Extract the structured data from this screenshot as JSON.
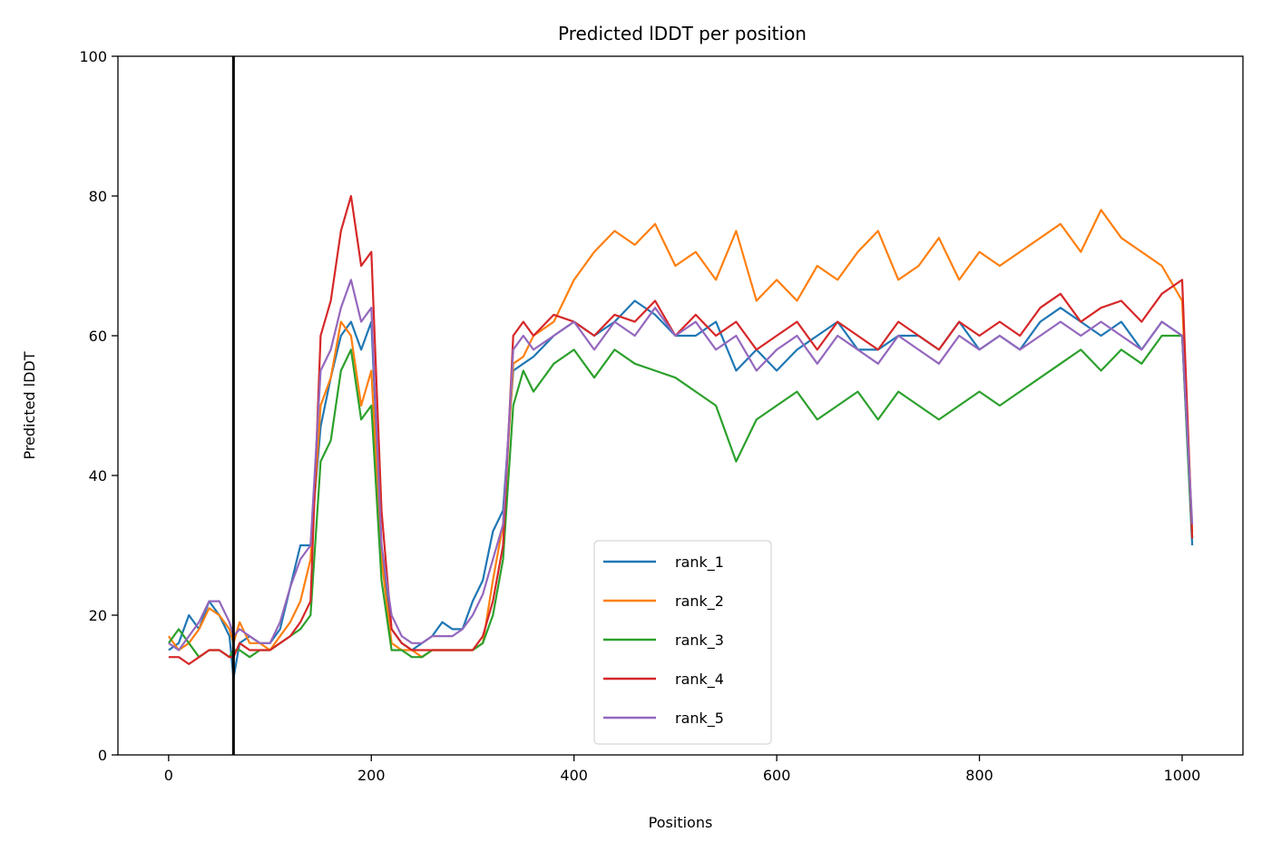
{
  "chart_data": {
    "type": "line",
    "title": "Predicted lDDT per position",
    "xlabel": "Positions",
    "ylabel": "Predicted lDDT",
    "xlim": [
      -50,
      1060
    ],
    "ylim": [
      0,
      100
    ],
    "xticks": [
      0,
      200,
      400,
      600,
      800,
      1000
    ],
    "yticks": [
      0,
      20,
      40,
      60,
      80,
      100
    ],
    "grid": false,
    "legend_position": "lower-center",
    "vline_x": 64,
    "series": [
      {
        "name": "rank_1",
        "color": "#1f77b4",
        "x": [
          0,
          10,
          20,
          30,
          40,
          50,
          60,
          64,
          70,
          80,
          90,
          100,
          110,
          120,
          130,
          140,
          150,
          160,
          170,
          180,
          190,
          200,
          210,
          220,
          230,
          240,
          250,
          260,
          270,
          280,
          290,
          300,
          310,
          320,
          330,
          340,
          350,
          360,
          380,
          400,
          420,
          440,
          460,
          480,
          500,
          520,
          540,
          560,
          580,
          600,
          620,
          640,
          660,
          680,
          700,
          720,
          740,
          760,
          780,
          800,
          820,
          840,
          860,
          880,
          900,
          920,
          940,
          960,
          980,
          1000,
          1010
        ],
        "y": [
          15,
          16,
          20,
          18,
          22,
          20,
          17,
          11,
          16,
          17,
          16,
          16,
          18,
          24,
          30,
          30,
          47,
          54,
          60,
          62,
          58,
          62,
          30,
          18,
          16,
          15,
          16,
          17,
          19,
          18,
          18,
          22,
          25,
          32,
          35,
          55,
          56,
          57,
          60,
          62,
          60,
          62,
          65,
          63,
          60,
          60,
          62,
          55,
          58,
          55,
          58,
          60,
          62,
          58,
          58,
          60,
          60,
          58,
          62,
          58,
          60,
          58,
          62,
          64,
          62,
          60,
          62,
          58,
          62,
          60,
          30
        ]
      },
      {
        "name": "rank_2",
        "color": "#ff7f0e",
        "x": [
          0,
          10,
          20,
          30,
          40,
          50,
          60,
          64,
          70,
          80,
          90,
          100,
          110,
          120,
          130,
          140,
          150,
          160,
          170,
          180,
          190,
          200,
          210,
          220,
          230,
          240,
          250,
          260,
          270,
          280,
          290,
          300,
          310,
          320,
          330,
          340,
          350,
          360,
          380,
          400,
          420,
          440,
          460,
          480,
          500,
          520,
          540,
          560,
          580,
          600,
          620,
          640,
          660,
          680,
          700,
          720,
          740,
          760,
          780,
          800,
          820,
          840,
          860,
          880,
          900,
          920,
          940,
          960,
          980,
          1000,
          1010
        ],
        "y": [
          17,
          15,
          16,
          18,
          21,
          20,
          18,
          16,
          19,
          16,
          16,
          15,
          17,
          19,
          22,
          28,
          50,
          54,
          62,
          60,
          50,
          55,
          28,
          16,
          15,
          15,
          14,
          15,
          15,
          15,
          15,
          15,
          16,
          25,
          33,
          56,
          57,
          60,
          62,
          68,
          72,
          75,
          73,
          76,
          70,
          72,
          68,
          75,
          65,
          68,
          65,
          70,
          68,
          72,
          75,
          68,
          70,
          74,
          68,
          72,
          70,
          72,
          74,
          76,
          72,
          78,
          74,
          72,
          70,
          65,
          32
        ]
      },
      {
        "name": "rank_3",
        "color": "#2ca02c",
        "x": [
          0,
          10,
          20,
          30,
          40,
          50,
          60,
          64,
          70,
          80,
          90,
          100,
          110,
          120,
          130,
          140,
          150,
          160,
          170,
          180,
          190,
          200,
          210,
          220,
          230,
          240,
          250,
          260,
          270,
          280,
          290,
          300,
          310,
          320,
          330,
          340,
          350,
          360,
          380,
          400,
          420,
          440,
          460,
          480,
          500,
          520,
          540,
          560,
          580,
          600,
          620,
          640,
          660,
          680,
          700,
          720,
          740,
          760,
          780,
          800,
          820,
          840,
          860,
          880,
          900,
          920,
          940,
          960,
          980,
          1000,
          1010
        ],
        "y": [
          16,
          18,
          16,
          14,
          15,
          15,
          14,
          15,
          15,
          14,
          15,
          15,
          16,
          17,
          18,
          20,
          42,
          45,
          55,
          58,
          48,
          50,
          25,
          15,
          15,
          14,
          14,
          15,
          15,
          15,
          15,
          15,
          16,
          20,
          28,
          50,
          55,
          52,
          56,
          58,
          54,
          58,
          56,
          55,
          54,
          52,
          50,
          42,
          48,
          50,
          52,
          48,
          50,
          52,
          48,
          52,
          50,
          48,
          50,
          52,
          50,
          52,
          54,
          56,
          58,
          55,
          58,
          56,
          60,
          60,
          31
        ]
      },
      {
        "name": "rank_4",
        "color": "#d62728",
        "x": [
          0,
          10,
          20,
          30,
          40,
          50,
          60,
          64,
          70,
          80,
          90,
          100,
          110,
          120,
          130,
          140,
          150,
          160,
          170,
          180,
          190,
          200,
          210,
          220,
          230,
          240,
          250,
          260,
          270,
          280,
          290,
          300,
          310,
          320,
          330,
          340,
          350,
          360,
          380,
          400,
          420,
          440,
          460,
          480,
          500,
          520,
          540,
          560,
          580,
          600,
          620,
          640,
          660,
          680,
          700,
          720,
          740,
          760,
          780,
          800,
          820,
          840,
          860,
          880,
          900,
          920,
          940,
          960,
          980,
          1000,
          1010
        ],
        "y": [
          14,
          14,
          13,
          14,
          15,
          15,
          14,
          14,
          16,
          15,
          15,
          15,
          16,
          17,
          19,
          22,
          60,
          65,
          75,
          80,
          70,
          72,
          35,
          18,
          16,
          15,
          15,
          15,
          15,
          15,
          15,
          15,
          17,
          22,
          30,
          60,
          62,
          60,
          63,
          62,
          60,
          63,
          62,
          65,
          60,
          63,
          60,
          62,
          58,
          60,
          62,
          58,
          62,
          60,
          58,
          62,
          60,
          58,
          62,
          60,
          62,
          60,
          64,
          66,
          62,
          64,
          65,
          62,
          66,
          68,
          31
        ]
      },
      {
        "name": "rank_5",
        "color": "#9467bd",
        "x": [
          0,
          10,
          20,
          30,
          40,
          50,
          60,
          64,
          70,
          80,
          90,
          100,
          110,
          120,
          130,
          140,
          150,
          160,
          170,
          180,
          190,
          200,
          210,
          220,
          230,
          240,
          250,
          260,
          270,
          280,
          290,
          300,
          310,
          320,
          330,
          340,
          350,
          360,
          380,
          400,
          420,
          440,
          460,
          480,
          500,
          520,
          540,
          560,
          580,
          600,
          620,
          640,
          660,
          680,
          700,
          720,
          740,
          760,
          780,
          800,
          820,
          840,
          860,
          880,
          900,
          920,
          940,
          960,
          980,
          1000,
          1010
        ],
        "y": [
          16,
          15,
          17,
          19,
          22,
          22,
          19,
          17,
          18,
          17,
          16,
          16,
          19,
          24,
          28,
          30,
          55,
          58,
          64,
          68,
          62,
          64,
          30,
          20,
          17,
          16,
          16,
          17,
          17,
          17,
          18,
          20,
          23,
          28,
          33,
          58,
          60,
          58,
          60,
          62,
          58,
          62,
          60,
          64,
          60,
          62,
          58,
          60,
          55,
          58,
          60,
          56,
          60,
          58,
          56,
          60,
          58,
          56,
          60,
          58,
          60,
          58,
          60,
          62,
          60,
          62,
          60,
          58,
          62,
          60,
          33
        ]
      }
    ]
  }
}
